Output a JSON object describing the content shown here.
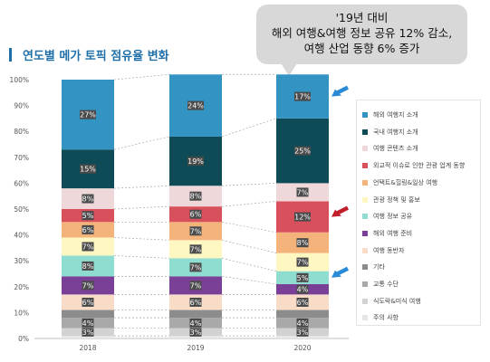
{
  "title": "연도별 메가 토픽 점유율 변화",
  "callout": {
    "lines": [
      "'19년 대비",
      "해외 여행&여행 정보 공유 12% 감소,",
      "여행 산업 동향 6% 증가"
    ]
  },
  "chart_data": {
    "type": "bar",
    "stacked": true,
    "normalized": true,
    "title": "",
    "xlabel": "",
    "ylabel": "",
    "ylim": [
      0,
      100
    ],
    "y_ticks": [
      "0%",
      "10%",
      "20%",
      "30%",
      "40%",
      "50%",
      "60%",
      "70%",
      "80%",
      "90%",
      "100%"
    ],
    "grid": false,
    "legend_position": "right",
    "categories": [
      "2018",
      "2019",
      "2020"
    ],
    "series": [
      {
        "name": "주의 사항",
        "color": "#e6e6e6",
        "values": [
          1,
          1,
          1
        ],
        "labels": [
          "",
          "",
          ""
        ]
      },
      {
        "name": "식도락&미식 여행",
        "color": "#d2d2d2",
        "values": [
          3,
          3,
          3
        ],
        "labels": [
          "3%",
          "3%",
          "3%"
        ]
      },
      {
        "name": "교통 수단",
        "color": "#a9a9a9",
        "values": [
          4,
          4,
          4
        ],
        "labels": [
          "4%",
          "4%",
          "4%"
        ]
      },
      {
        "name": "기타",
        "color": "#8c8c8c",
        "values": [
          3,
          3,
          3
        ],
        "labels": [
          "",
          "",
          ""
        ]
      },
      {
        "name": "여행 동반자",
        "color": "#f9dcc8",
        "values": [
          6,
          6,
          6
        ],
        "labels": [
          "6%",
          "6%",
          "6%"
        ]
      },
      {
        "name": "해외 여행 준비",
        "color": "#7a3f96",
        "values": [
          7,
          7,
          4
        ],
        "labels": [
          "7%",
          "7%",
          "4%"
        ]
      },
      {
        "name": "여행 정보 공유",
        "color": "#8fdcd0",
        "values": [
          8,
          7,
          5
        ],
        "labels": [
          "8%",
          "7%",
          "5%"
        ]
      },
      {
        "name": "관광 정책 및 홍보",
        "color": "#fff7c2",
        "values": [
          7,
          7,
          7
        ],
        "labels": [
          "7%",
          "7%",
          "7%"
        ]
      },
      {
        "name": "언택트&힐링&일상 여행",
        "color": "#f3b37a",
        "values": [
          6,
          7,
          8
        ],
        "labels": [
          "6%",
          "7%",
          "8%"
        ]
      },
      {
        "name": "외교적 이슈로 인한 관광 업계 동향",
        "color": "#d9505d",
        "values": [
          5,
          6,
          12
        ],
        "labels": [
          "5%",
          "6%",
          "12%"
        ]
      },
      {
        "name": "여행 콘텐츠 소개",
        "color": "#efd8da",
        "values": [
          8,
          8,
          7
        ],
        "labels": [
          "8%",
          "8%",
          "7%"
        ]
      },
      {
        "name": "국내 여행지 소개",
        "color": "#0f4a57",
        "values": [
          15,
          19,
          25
        ],
        "labels": [
          "15%",
          "19%",
          "25%"
        ]
      },
      {
        "name": "해외 여행지 소개",
        "color": "#3394c4",
        "values": [
          27,
          24,
          17
        ],
        "labels": [
          "27%",
          "24%",
          "17%"
        ]
      }
    ],
    "legend_order": [
      "해외 여행지 소개",
      "국내 여행지 소개",
      "여행 콘텐츠 소개",
      "외교적 이슈로 인한 관광 업계 동향",
      "언택트&힐링&일상 여행",
      "관광 정책 및 홍보",
      "여행 정보 공유",
      "해외 여행 준비",
      "여행 동반자",
      "기타",
      "교통 수단",
      "식도락&미식 여행",
      "주의 사항"
    ],
    "annotations": [
      {
        "category": "2020",
        "series": "해외 여행지 소개",
        "shape": "arrow",
        "color": "#2a8ad6"
      },
      {
        "category": "2020",
        "series": "외교적 이슈로 인한 관광 업계 동향",
        "shape": "arrow",
        "color": "#c01f2a"
      },
      {
        "category": "2020",
        "series": "여행 정보 공유",
        "shape": "arrow",
        "color": "#2a8ad6"
      }
    ]
  }
}
